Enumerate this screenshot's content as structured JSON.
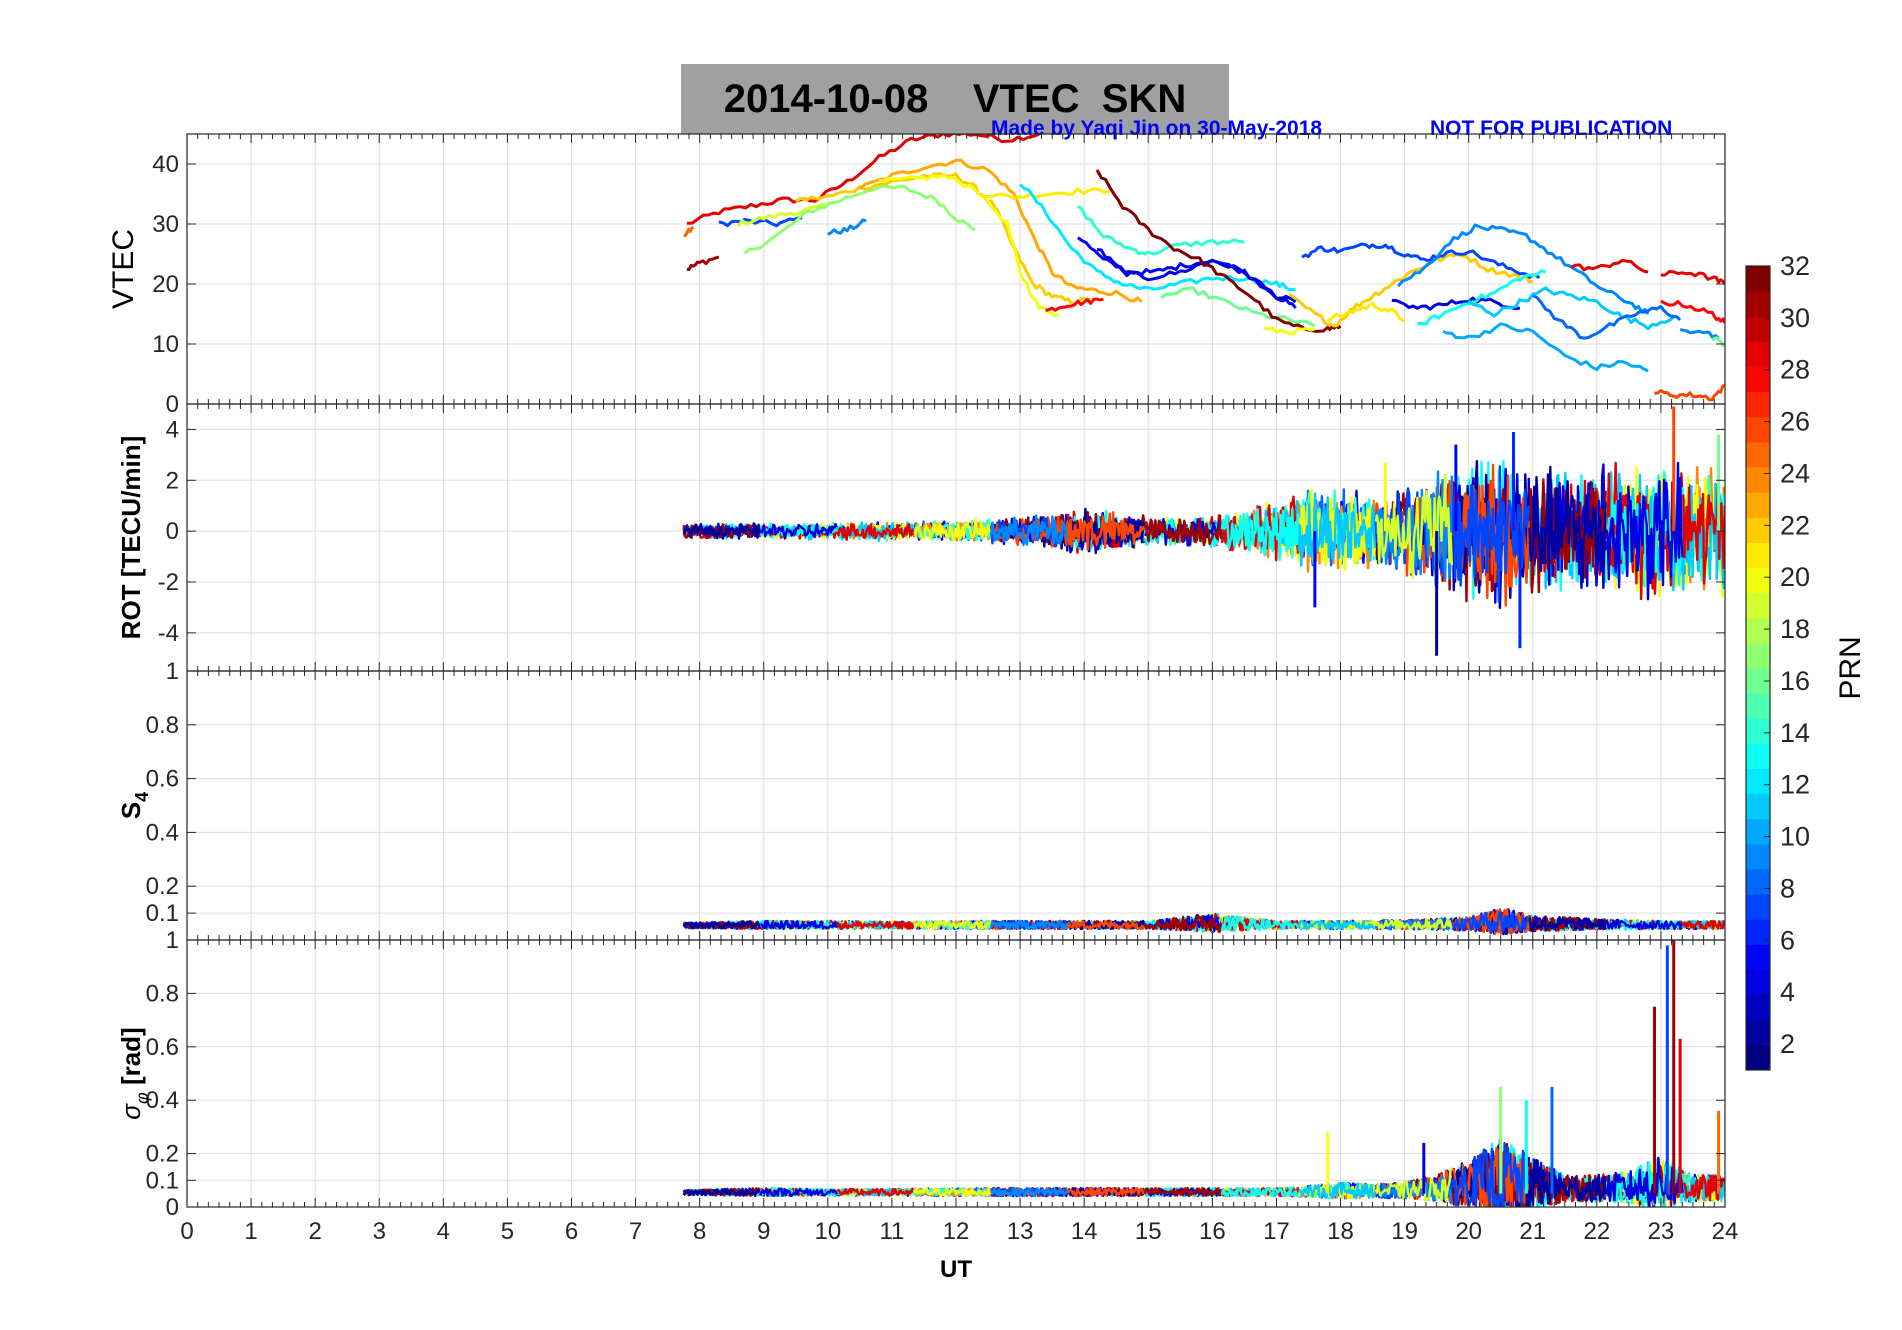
{
  "title": {
    "date": "2014-10-08",
    "quantity": "VTEC",
    "station": "SKN"
  },
  "credit": {
    "made_by": "Made by Yaqi Jin on 30-May-2018",
    "notice": "NOT FOR PUBLICATION"
  },
  "colors": {
    "background": "#ffffff",
    "title_box": "#a0a0a0",
    "credit_text": "#0000ff",
    "grid": "#dddddd",
    "axis": "#262626",
    "colormap": "jet"
  },
  "chart_data": [
    {
      "type": "line",
      "panel": "vtec",
      "ylabel": "VTEC",
      "xlim": [
        0,
        24
      ],
      "ylim": [
        0,
        45
      ],
      "yticks": [
        0,
        10,
        20,
        30,
        40
      ],
      "grid": true,
      "series": [
        {
          "prn": 29,
          "x": [
            7.8,
            8.3,
            8.8,
            9.3,
            9.8,
            10.3,
            10.8,
            11.3,
            11.8,
            12.3,
            12.8,
            13.3
          ],
          "y": [
            30,
            32,
            33,
            34,
            34,
            37,
            41,
            44,
            45,
            45,
            44,
            45
          ]
        },
        {
          "prn": 31,
          "x": [
            7.8,
            8.0,
            8.3
          ],
          "y": [
            22.5,
            23.5,
            24.5
          ]
        },
        {
          "prn": 25,
          "x": [
            7.75,
            7.9
          ],
          "y": [
            28,
            29.5
          ]
        },
        {
          "prn": 7,
          "x": [
            8.3,
            8.7,
            9.2,
            9.6
          ],
          "y": [
            30,
            30.5,
            30,
            31
          ]
        },
        {
          "prn": 19,
          "x": [
            8.6,
            9.0,
            9.5,
            10.0
          ],
          "y": [
            30,
            31,
            32,
            33
          ]
        },
        {
          "prn": 17,
          "x": [
            8.7,
            9.2,
            9.7,
            10.2,
            10.7,
            11.2,
            11.7,
            12.0,
            12.3
          ],
          "y": [
            25,
            28,
            32,
            34,
            36,
            36,
            34,
            31,
            29
          ]
        },
        {
          "prn": 9,
          "x": [
            10.0,
            10.3,
            10.6
          ],
          "y": [
            28.5,
            29,
            30.5
          ]
        },
        {
          "prn": 22,
          "x": [
            9.5,
            10.0,
            10.5,
            11.0,
            11.5,
            12.0,
            12.3,
            12.6,
            12.9,
            13.2,
            13.5,
            13.8,
            14.1
          ],
          "y": [
            34,
            34.5,
            36,
            37,
            38,
            38,
            36,
            33,
            26,
            20,
            18,
            17,
            17.5
          ]
        },
        {
          "prn": 23,
          "x": [
            10.5,
            11.0,
            11.5,
            12.0,
            12.5,
            12.9,
            13.2,
            13.5,
            13.8,
            14.1,
            14.5,
            14.9
          ],
          "y": [
            36,
            38,
            39.5,
            40.5,
            39,
            35,
            28,
            22,
            19.5,
            19,
            18.5,
            17
          ]
        },
        {
          "prn": 20,
          "x": [
            10.8,
            11.3,
            11.8,
            12.3,
            12.8,
            13.0,
            13.3,
            13.6
          ],
          "y": [
            37,
            37.5,
            38,
            36,
            30,
            22,
            16,
            15
          ]
        },
        {
          "prn": 28,
          "x": [
            13.4,
            13.7,
            14.0,
            14.3
          ],
          "y": [
            15.5,
            16.5,
            17,
            17.5
          ]
        },
        {
          "prn": 21,
          "x": [
            12.4,
            12.9,
            13.4,
            13.9,
            14.4
          ],
          "y": [
            35,
            34.5,
            35,
            35.5,
            35.5
          ]
        },
        {
          "prn": 12,
          "x": [
            13.0,
            13.4,
            13.8,
            14.2,
            14.6,
            15.0,
            15.5,
            16.0,
            16.5,
            17.0,
            17.3
          ],
          "y": [
            37,
            32,
            26,
            22,
            20,
            19,
            20,
            21,
            21,
            20,
            19
          ]
        },
        {
          "prn": 5,
          "x": [
            13.9,
            14.3,
            14.7,
            15.1,
            15.5,
            16.0,
            16.5,
            17.0,
            17.3
          ],
          "y": [
            28,
            24,
            22,
            22,
            23,
            24,
            22,
            18,
            16
          ]
        },
        {
          "prn": 14,
          "x": [
            13.9,
            14.3,
            14.7,
            15.0,
            15.5,
            16.0,
            16.5
          ],
          "y": [
            33,
            28,
            26,
            25,
            26.5,
            27,
            27
          ]
        },
        {
          "prn": 4,
          "x": [
            14.2,
            14.6,
            15.0,
            15.5,
            16.0,
            16.5,
            17.0,
            17.3
          ],
          "y": [
            26,
            22,
            21,
            22,
            24,
            22,
            18,
            17
          ]
        },
        {
          "prn": 16,
          "x": [
            15.2,
            15.7,
            16.2,
            16.7,
            17.2,
            17.6
          ],
          "y": [
            18,
            19,
            17,
            15,
            14,
            13
          ]
        },
        {
          "prn": 32,
          "x": [
            14.2,
            14.6,
            15.0,
            15.4,
            15.8,
            16.2,
            16.6,
            17.0,
            17.4,
            17.8,
            18.0
          ],
          "y": [
            39,
            33,
            29,
            26,
            24,
            21,
            18,
            14,
            12.5,
            12.5,
            13
          ]
        },
        {
          "prn": 20,
          "x": [
            16.8,
            17.2,
            17.6
          ],
          "y": [
            12.5,
            12,
            12.5
          ]
        },
        {
          "prn": 22,
          "x": [
            17.2,
            17.6,
            17.9,
            18.2,
            18.5,
            18.8,
            19.1,
            19.5,
            19.9,
            20.3,
            20.7,
            21.0
          ],
          "y": [
            18,
            15,
            13,
            16,
            18,
            20,
            22,
            24,
            25,
            22.5,
            21.5,
            20.5
          ]
        },
        {
          "prn": 7,
          "x": [
            17.4,
            17.7,
            18.0,
            18.4,
            18.7,
            19.0,
            19.3,
            19.6,
            20.0,
            20.4,
            20.8,
            21.1
          ],
          "y": [
            24.5,
            26,
            25.5,
            26.5,
            26.5,
            25,
            24,
            25,
            25.5,
            23.5,
            22,
            21
          ]
        },
        {
          "prn": 21,
          "x": [
            17.8,
            18.2,
            18.5,
            18.8,
            19.0
          ],
          "y": [
            14,
            15.5,
            16.5,
            15.5,
            14
          ]
        },
        {
          "prn": 4,
          "x": [
            18.8,
            19.2,
            19.6,
            20.0,
            20.4,
            20.8
          ],
          "y": [
            17,
            16,
            16.5,
            17.5,
            17,
            16
          ]
        },
        {
          "prn": 9,
          "x": [
            18.9,
            19.3,
            19.7,
            20.1,
            20.5,
            20.9,
            21.3,
            21.7,
            22.1,
            22.5,
            22.8
          ],
          "y": [
            20,
            22.5,
            27,
            29.5,
            29,
            28,
            25,
            22,
            19,
            17,
            15
          ]
        },
        {
          "prn": 13,
          "x": [
            19.2,
            19.6,
            20.0,
            20.4,
            20.8,
            21.2
          ],
          "y": [
            13,
            15,
            17,
            18.5,
            21,
            22
          ]
        },
        {
          "prn": 10,
          "x": [
            19.6,
            20.0,
            20.5,
            21.0,
            21.5,
            22.0,
            22.4,
            22.8
          ],
          "y": [
            12,
            11,
            13,
            12,
            8,
            6,
            7,
            5.5
          ]
        },
        {
          "prn": 11,
          "x": [
            20.0,
            20.4,
            20.8,
            21.2,
            21.6,
            22.0,
            22.4,
            22.8,
            23.2
          ],
          "y": [
            17,
            15,
            17,
            19,
            18,
            17,
            14.5,
            13,
            14.5
          ]
        },
        {
          "prn": 8,
          "x": [
            21.0,
            21.4,
            21.8,
            22.2,
            22.6,
            23.0,
            23.3
          ],
          "y": [
            18,
            14,
            11,
            13,
            15,
            16,
            14
          ]
        },
        {
          "prn": 29,
          "x": [
            21.6,
            22.0,
            22.4,
            22.8
          ],
          "y": [
            23,
            22.5,
            24,
            22
          ]
        },
        {
          "prn": 29,
          "x": [
            23.0,
            23.4,
            23.8,
            24.0
          ],
          "y": [
            21.5,
            22,
            21,
            20
          ]
        },
        {
          "prn": 28,
          "x": [
            23.0,
            23.4,
            23.8,
            24.0
          ],
          "y": [
            17,
            16.5,
            15,
            13.5
          ]
        },
        {
          "prn": 9,
          "x": [
            23.3,
            23.6,
            23.9
          ],
          "y": [
            12,
            12.5,
            11
          ]
        },
        {
          "prn": 16,
          "x": [
            23.8,
            24.0
          ],
          "y": [
            11,
            10
          ]
        },
        {
          "prn": 26,
          "x": [
            22.9,
            23.2,
            23.5,
            23.8,
            24.0
          ],
          "y": [
            2,
            1.5,
            1.5,
            1,
            3
          ]
        }
      ]
    },
    {
      "type": "line",
      "panel": "rot",
      "ylabel": "ROT [TECU/min]",
      "xlim": [
        0,
        24
      ],
      "ylim": [
        -5.5,
        5
      ],
      "yticks": [
        -4,
        -2,
        0,
        2,
        4
      ],
      "grid": true,
      "envelope": {
        "x": [
          7.75,
          9,
          10,
          11,
          12,
          13,
          13.5,
          14,
          14.5,
          15,
          15.5,
          16,
          16.5,
          17,
          17.5,
          18,
          18.5,
          19,
          19.5,
          20,
          20.5,
          21,
          21.5,
          22,
          22.5,
          23,
          23.5,
          24
        ],
        "amplitude": [
          0.3,
          0.35,
          0.35,
          0.4,
          0.45,
          0.6,
          0.8,
          1.0,
          0.8,
          0.6,
          0.6,
          0.7,
          0.9,
          1.3,
          1.8,
          1.8,
          1.5,
          1.8,
          2.6,
          3.0,
          3.2,
          3.0,
          2.6,
          2.8,
          2.8,
          3.2,
          2.8,
          2.6
        ]
      },
      "spikes": [
        {
          "x": 17.6,
          "y": -3.0,
          "prn": 5
        },
        {
          "x": 18.7,
          "y": 2.7,
          "prn": 20
        },
        {
          "x": 19.5,
          "y": -4.9,
          "prn": 2
        },
        {
          "x": 19.8,
          "y": 3.4,
          "prn": 5
        },
        {
          "x": 20.8,
          "y": -4.6,
          "prn": 6
        },
        {
          "x": 20.7,
          "y": 3.9,
          "prn": 6
        },
        {
          "x": 23.2,
          "y": 4.9,
          "prn": 26
        },
        {
          "x": 23.9,
          "y": 3.8,
          "prn": 16
        }
      ]
    },
    {
      "type": "line",
      "panel": "s4",
      "ylabel": "S4",
      "xlim": [
        0,
        24
      ],
      "ylim": [
        0,
        1
      ],
      "yticks": [
        0.1,
        0.2,
        0.4,
        0.6,
        0.8,
        1
      ],
      "grid": true,
      "baseline": 0.05,
      "envelope": {
        "x": [
          7.75,
          9,
          10,
          11,
          12,
          13,
          14,
          15,
          15.5,
          16,
          17,
          18,
          19,
          20,
          20.5,
          21,
          22,
          23,
          24
        ],
        "amplitude": [
          0.02,
          0.03,
          0.03,
          0.025,
          0.03,
          0.03,
          0.03,
          0.03,
          0.05,
          0.07,
          0.03,
          0.03,
          0.035,
          0.05,
          0.1,
          0.06,
          0.04,
          0.03,
          0.03
        ]
      }
    },
    {
      "type": "line",
      "panel": "sigma_phi",
      "ylabel": "σφ [rad]",
      "xlabel": "UT",
      "xlim": [
        0,
        24
      ],
      "ylim": [
        0,
        1
      ],
      "xticks": [
        0,
        1,
        2,
        3,
        4,
        5,
        6,
        7,
        8,
        9,
        10,
        11,
        12,
        13,
        14,
        15,
        16,
        17,
        18,
        19,
        20,
        21,
        22,
        23,
        24
      ],
      "yticks": [
        0,
        0.1,
        0.2,
        0.4,
        0.6,
        0.8,
        1
      ],
      "grid": true,
      "baseline": 0.05,
      "envelope": {
        "x": [
          7.75,
          9,
          10,
          11,
          12,
          13,
          14,
          15,
          16,
          17,
          17.5,
          18,
          18.5,
          19,
          19.5,
          20,
          20.5,
          21,
          21.5,
          22,
          22.5,
          23,
          23.5,
          24
        ],
        "amplitude": [
          0.02,
          0.03,
          0.025,
          0.025,
          0.03,
          0.03,
          0.03,
          0.03,
          0.03,
          0.03,
          0.04,
          0.06,
          0.05,
          0.06,
          0.1,
          0.18,
          0.3,
          0.2,
          0.1,
          0.1,
          0.12,
          0.2,
          0.1,
          0.1
        ]
      },
      "spikes": [
        {
          "x": 17.8,
          "y": 0.28,
          "prn": 20
        },
        {
          "x": 19.3,
          "y": 0.24,
          "prn": 4
        },
        {
          "x": 20.5,
          "y": 0.45,
          "prn": 17
        },
        {
          "x": 20.9,
          "y": 0.4,
          "prn": 13
        },
        {
          "x": 21.3,
          "y": 0.45,
          "prn": 8
        },
        {
          "x": 22.9,
          "y": 0.75,
          "prn": 31
        },
        {
          "x": 23.2,
          "y": 1.0,
          "prn": 31
        },
        {
          "x": 23.1,
          "y": 0.98,
          "prn": 7
        },
        {
          "x": 23.3,
          "y": 0.63,
          "prn": 29
        },
        {
          "x": 23.9,
          "y": 0.36,
          "prn": 25
        }
      ]
    }
  ],
  "colorbar": {
    "label": "PRN",
    "min": 1,
    "max": 32,
    "ticks": [
      2,
      4,
      6,
      8,
      10,
      12,
      14,
      16,
      18,
      20,
      22,
      24,
      26,
      28,
      30,
      32
    ]
  }
}
